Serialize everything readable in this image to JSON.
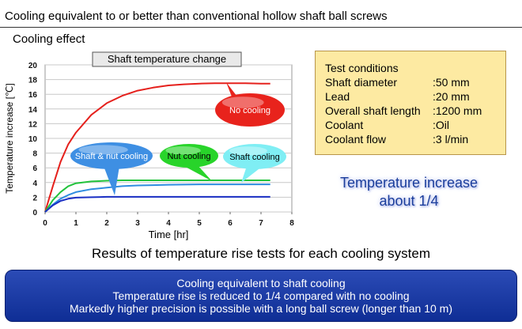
{
  "header": {
    "title": "Cooling equivalent to or better than conventional hollow shaft ball screws"
  },
  "section": {
    "title": "Cooling effect"
  },
  "chart_data": {
    "type": "line",
    "title": "Shaft temperature change",
    "xlabel": "Time [hr]",
    "ylabel": "Temperature increase [℃]",
    "xlim": [
      0,
      8
    ],
    "ylim": [
      0,
      20
    ],
    "xticks": [
      "0",
      "1",
      "2",
      "3",
      "4",
      "5",
      "6",
      "7",
      "8"
    ],
    "yticks": [
      "0",
      "2",
      "4",
      "6",
      "8",
      "10",
      "12",
      "14",
      "16",
      "18",
      "20"
    ],
    "grid": true,
    "series": [
      {
        "name": "No cooling",
        "color": "#e5201c",
        "x": [
          0,
          0.25,
          0.5,
          0.75,
          1,
          1.5,
          2,
          2.5,
          3,
          3.5,
          4,
          4.5,
          5,
          5.5,
          6,
          6.5,
          7,
          7.3
        ],
        "y": [
          0,
          3.5,
          6.8,
          9.2,
          10.8,
          13.2,
          14.8,
          15.8,
          16.5,
          16.9,
          17.2,
          17.35,
          17.45,
          17.5,
          17.5,
          17.5,
          17.45,
          17.45
        ]
      },
      {
        "name": "Shaft & nut cooling",
        "color": "#2f8de0",
        "x": [
          0,
          0.25,
          0.5,
          0.75,
          1,
          1.5,
          2,
          2.5,
          3,
          3.5,
          4,
          5,
          6,
          7,
          7.3
        ],
        "y": [
          0,
          1.0,
          1.8,
          2.3,
          2.7,
          3.1,
          3.3,
          3.5,
          3.6,
          3.65,
          3.7,
          3.75,
          3.75,
          3.75,
          3.75
        ]
      },
      {
        "name": "Nut cooling",
        "color": "#22c33c",
        "x": [
          0,
          0.25,
          0.5,
          0.75,
          1,
          1.5,
          2,
          2.5,
          3,
          3.5,
          4,
          5,
          6,
          7,
          7.3
        ],
        "y": [
          0,
          1.6,
          2.7,
          3.5,
          3.9,
          4.15,
          4.25,
          4.3,
          4.3,
          4.3,
          4.3,
          4.3,
          4.3,
          4.3,
          4.3
        ]
      },
      {
        "name": "Shaft cooling",
        "color": "#1a2fc4",
        "x": [
          0,
          0.25,
          0.5,
          0.75,
          1,
          1.5,
          2,
          2.5,
          3,
          4,
          5,
          6,
          7,
          7.3
        ],
        "y": [
          0,
          0.9,
          1.5,
          1.8,
          1.95,
          2.0,
          2.05,
          2.05,
          2.05,
          2.05,
          2.05,
          2.05,
          2.05,
          2.05
        ]
      }
    ]
  },
  "conditions": {
    "title": "Test conditions",
    "rows": [
      {
        "label": "Shaft diameter",
        "value": ":50 mm"
      },
      {
        "label": "Lead",
        "value": ":20 mm"
      },
      {
        "label": "Overall shaft length",
        "value": ":1200 mm"
      },
      {
        "label": "Coolant",
        "value": ":Oil"
      },
      {
        "label": "Coolant flow",
        "value": ":3 l/min"
      }
    ]
  },
  "increase": {
    "line1": "Temperature increase",
    "line2": "about 1/4"
  },
  "results": {
    "text": "Results of temperature rise tests for each cooling system"
  },
  "summary": {
    "line1": "Cooling equivalent to shaft cooling",
    "line2": "Temperature rise is reduced to 1/4 compared with no cooling",
    "line3": "Markedly higher precision is possible with a long ball screw (longer than 10 m)"
  },
  "colors": {
    "conditions_bg": "#fdeaa2",
    "summary_bg": "#1f3fa8",
    "accent_text": "#1a3d9c",
    "callout_red": "#e8231c",
    "callout_blue": "#3e8fe3",
    "callout_green": "#28d42a",
    "callout_cyan": "#7feef4"
  }
}
